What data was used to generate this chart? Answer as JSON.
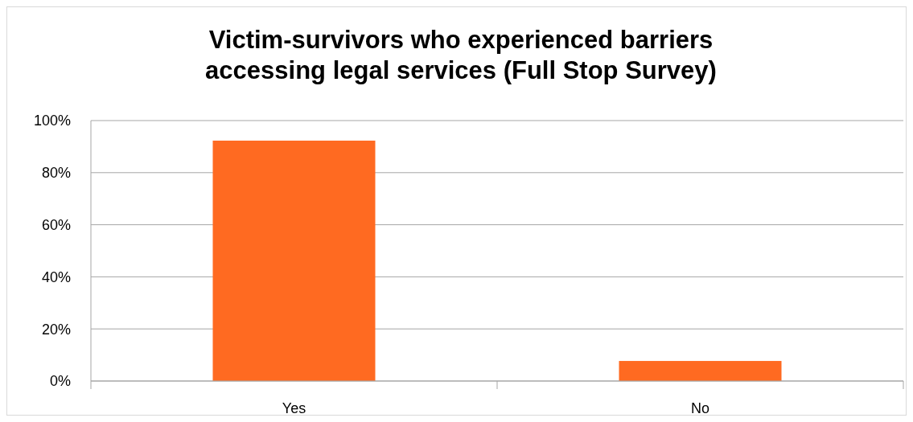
{
  "chart_data": {
    "type": "bar",
    "title": "Victim-survivors who experienced barriers accessing legal services (Full Stop Survey)",
    "categories": [
      "Yes",
      "No"
    ],
    "values": [
      92.3,
      7.7
    ],
    "color": "#ff6a21",
    "ylim": [
      0,
      100
    ],
    "yticks": [
      {
        "value": 0,
        "label": "0%"
      },
      {
        "value": 20,
        "label": "20%"
      },
      {
        "value": 40,
        "label": "40%"
      },
      {
        "value": 60,
        "label": "60%"
      },
      {
        "value": 80,
        "label": "80%"
      },
      {
        "value": 100,
        "label": "100%"
      }
    ],
    "grid": "y"
  }
}
